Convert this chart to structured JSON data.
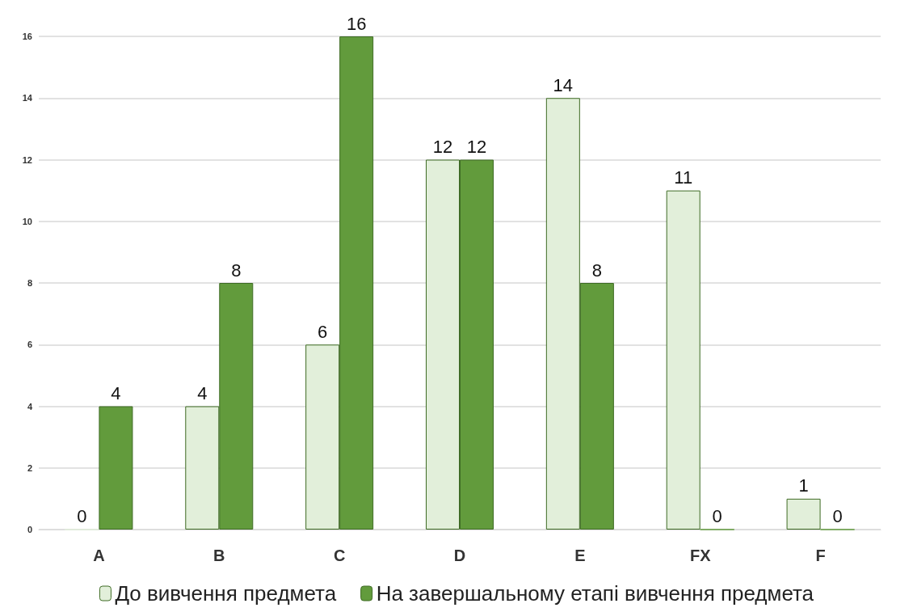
{
  "chart_data": {
    "type": "bar",
    "categories": [
      "A",
      "B",
      "C",
      "D",
      "E",
      "FX",
      "F"
    ],
    "series": [
      {
        "name": "До вивчення предмета",
        "color": "#e2efda",
        "values": [
          0,
          4,
          6,
          12,
          14,
          11,
          1
        ]
      },
      {
        "name": "На завершальному етапі вивчення предмета",
        "color": "#629b3c",
        "values": [
          4,
          8,
          16,
          12,
          8,
          0,
          0
        ]
      }
    ],
    "ylim": [
      0,
      16
    ],
    "yticks": [
      0,
      2,
      4,
      6,
      8,
      10,
      12,
      14,
      16
    ],
    "grid": "y",
    "legend": "bottom",
    "data_labels": true
  }
}
